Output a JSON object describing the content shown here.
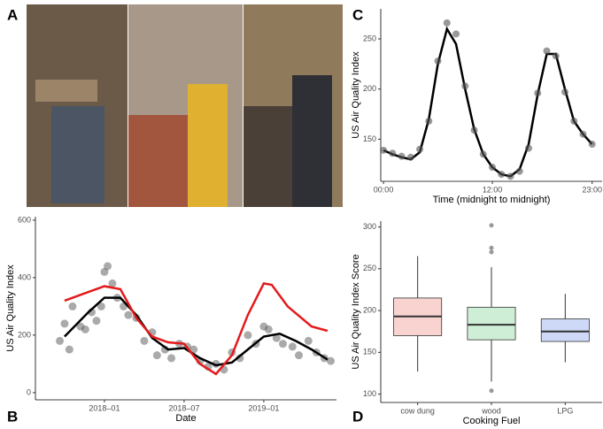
{
  "panel_labels": [
    "A",
    "B",
    "C",
    "D"
  ],
  "chart_data": [
    {
      "type": "scatter",
      "x_label": "Date",
      "y_label": "US Air Quality Index",
      "xlim": [
        2017.567,
        2019.456
      ],
      "xticks": [
        {
          "value": 2018.0,
          "label": "2018–01"
        },
        {
          "value": 2018.5,
          "label": "2018–07"
        },
        {
          "value": 2019.0,
          "label": "2019–01"
        }
      ],
      "ylim": [
        -25,
        612
      ],
      "yticks": [
        0,
        200,
        400,
        600
      ],
      "points": {
        "color": "#555555",
        "x": [
          2017.72,
          2017.75,
          2017.78,
          2017.8,
          2017.85,
          2017.88,
          2017.92,
          2017.95,
          2017.98,
          2018.0,
          2018.02,
          2018.05,
          2018.08,
          2018.12,
          2018.15,
          2018.2,
          2018.25,
          2018.3,
          2018.33,
          2018.38,
          2018.42,
          2018.47,
          2018.52,
          2018.56,
          2018.6,
          2018.65,
          2018.7,
          2018.75,
          2018.8,
          2018.85,
          2018.9,
          2018.95,
          2019.0,
          2019.03,
          2019.08,
          2019.12,
          2019.18,
          2019.22,
          2019.28,
          2019.33,
          2019.38,
          2019.42
        ],
        "values": [
          180,
          240,
          150,
          300,
          230,
          220,
          280,
          250,
          300,
          420,
          440,
          380,
          330,
          300,
          270,
          260,
          180,
          210,
          130,
          150,
          120,
          170,
          160,
          150,
          110,
          90,
          100,
          80,
          140,
          120,
          200,
          170,
          230,
          220,
          190,
          170,
          160,
          130,
          180,
          140,
          120,
          110
        ]
      },
      "lines": [
        {
          "color": "#000000",
          "x": [
            2017.75,
            2017.9,
            2018.0,
            2018.1,
            2018.2,
            2018.3,
            2018.4,
            2018.5,
            2018.6,
            2018.7,
            2018.8,
            2018.9,
            2019.0,
            2019.1,
            2019.2,
            2019.3,
            2019.4
          ],
          "values": [
            195,
            280,
            330,
            330,
            270,
            190,
            150,
            155,
            120,
            95,
            105,
            150,
            195,
            205,
            180,
            150,
            115
          ]
        },
        {
          "color": "#e41a1c",
          "x": [
            2017.75,
            2017.9,
            2018.0,
            2018.1,
            2018.2,
            2018.3,
            2018.4,
            2018.5,
            2018.6,
            2018.7,
            2018.8,
            2018.9,
            2019.0,
            2019.05,
            2019.15,
            2019.3,
            2019.4
          ],
          "values": [
            320,
            350,
            370,
            360,
            260,
            195,
            175,
            170,
            100,
            65,
            130,
            270,
            380,
            375,
            300,
            230,
            215
          ]
        }
      ]
    },
    {
      "type": "line",
      "x_label": "Time (midnight to midnight)",
      "y_label": "US Air Quality Index",
      "xlim": [
        -0.3,
        24.1
      ],
      "xticks": [
        {
          "value": 0,
          "label": "00:00"
        },
        {
          "value": 12,
          "label": "12:00"
        },
        {
          "value": 23,
          "label": "23:00"
        }
      ],
      "ylim": [
        108,
        280
      ],
      "yticks": [
        150,
        200,
        250
      ],
      "x": [
        0,
        1,
        2,
        3,
        4,
        5,
        6,
        7,
        8,
        9,
        10,
        11,
        12,
        13,
        14,
        15,
        16,
        17,
        18,
        19,
        20,
        21,
        22,
        23
      ],
      "points": {
        "color": "#555555",
        "values": [
          139,
          136,
          133,
          132,
          140,
          168,
          228,
          266,
          255,
          203,
          159,
          135,
          122,
          115,
          113,
          118,
          141,
          196,
          238,
          233,
          197,
          168,
          155,
          145
        ]
      },
      "line": {
        "color": "#000000",
        "values": [
          139,
          135,
          132,
          130,
          137,
          170,
          225,
          260,
          245,
          200,
          160,
          135,
          122,
          115,
          113,
          120,
          145,
          195,
          235,
          235,
          200,
          168,
          155,
          145
        ]
      }
    },
    {
      "type": "box",
      "x_label": "Cooking Fuel",
      "y_label": "US Air Quality Index Score",
      "ylim": [
        90,
        307
      ],
      "yticks": [
        100,
        150,
        200,
        250,
        300
      ],
      "categories": [
        "cow dung",
        "wood",
        "LPG"
      ],
      "boxes": [
        {
          "color": "#f9d3d0",
          "min": 127,
          "q1": 170,
          "median": 193,
          "q3": 215,
          "max": 265,
          "outliers": []
        },
        {
          "color": "#cfeed6",
          "min": 115,
          "q1": 165,
          "median": 183,
          "q3": 204,
          "max": 252,
          "outliers": [
            104,
            270,
            275,
            302
          ]
        },
        {
          "color": "#cdd9f7",
          "min": 138,
          "q1": 163,
          "median": 175,
          "q3": 190,
          "max": 220,
          "outliers": []
        }
      ]
    }
  ]
}
